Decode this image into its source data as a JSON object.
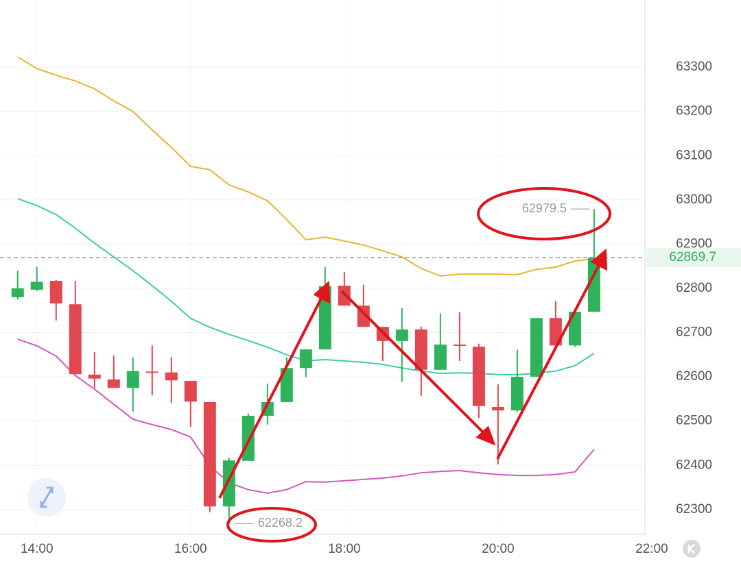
{
  "chart_data": {
    "type": "candlestick",
    "x": [
      13.75,
      14,
      14.25,
      14.5,
      14.75,
      15,
      15.25,
      15.5,
      15.75,
      16,
      16.25,
      16.5,
      16.75,
      17,
      17.25,
      17.5,
      17.75,
      18,
      18.25,
      18.5,
      18.75,
      19,
      19.25,
      19.5,
      19.75,
      20,
      20.25,
      20.5,
      20.75,
      21,
      21.25
    ],
    "open": [
      62780,
      62797,
      62817,
      62764,
      62605,
      62594,
      62575,
      62612,
      62610,
      62591,
      62543,
      62307,
      62410,
      62512,
      62543,
      62620,
      62662,
      62806,
      62761,
      62713,
      62681,
      62707,
      62616,
      62673,
      62668,
      62532,
      62524,
      62600,
      62733,
      62671,
      62747
    ],
    "high": [
      62840,
      62848,
      62819,
      62817,
      62656,
      62648,
      62644,
      62671,
      62645,
      62591,
      62543,
      62417,
      62517,
      62585,
      62644,
      62662,
      62848,
      62837,
      62808,
      62713,
      62755,
      62713,
      62743,
      62746,
      62675,
      62583,
      62661,
      62733,
      62771,
      62750,
      62979.5
    ],
    "low": [
      62775,
      62794,
      62727,
      62606,
      62575,
      62575,
      62521,
      62558,
      62541,
      62487,
      62294,
      62268.2,
      62410,
      62492,
      62543,
      62599,
      62662,
      62761,
      62713,
      62636,
      62588,
      62557,
      62616,
      62636,
      62507,
      62402,
      62520,
      62600,
      62671,
      62668,
      62747
    ],
    "close": [
      62800,
      62815,
      62766,
      62606,
      62596,
      62575,
      62613,
      62611,
      62592,
      62544,
      62307,
      62411,
      62512,
      62543,
      62620,
      62662,
      62805,
      62761,
      62713,
      62681,
      62707,
      62616,
      62673,
      62670,
      62534,
      62524,
      62600,
      62733,
      62671,
      62747,
      62869.7
    ],
    "up_color": "#2eb35c",
    "down_color": "#e0474f",
    "lines": [
      {
        "color": "#e8b42c",
        "values": [
          63323,
          63297,
          63282,
          63269,
          63251,
          63224,
          63200,
          63158,
          63119,
          63076,
          63068,
          63034,
          63018,
          62998,
          62956,
          62910,
          62916,
          62907,
          62898,
          62885,
          62871,
          62845,
          62828,
          62832,
          62832,
          62832,
          62831,
          62843,
          62848,
          62862,
          62867
        ]
      },
      {
        "color": "#3fcba9",
        "values": [
          63003,
          62987,
          62967,
          62936,
          62902,
          62871,
          62840,
          62806,
          62771,
          62732,
          62712,
          62696,
          62682,
          62667,
          62650,
          62636,
          62639,
          62636,
          62633,
          62628,
          62620,
          62613,
          62608,
          62609,
          62608,
          62605,
          62605,
          62608,
          62613,
          62625,
          62653
        ]
      },
      {
        "color": "#d458bd",
        "values": [
          62685,
          62670,
          62647,
          62603,
          62572,
          62538,
          62504,
          62492,
          62481,
          62464,
          62399,
          62360,
          62345,
          62337,
          62345,
          62363,
          62362,
          62365,
          62368,
          62371,
          62376,
          62383,
          62386,
          62388,
          62383,
          62379,
          62377,
          62377,
          62379,
          62385,
          62436
        ]
      }
    ],
    "xlim": [
      13.52,
      22.09
    ],
    "ylim": [
      62244,
      63452
    ],
    "xticks": [
      {
        "value": 14,
        "label": "14:00"
      },
      {
        "value": 16,
        "label": "16:00"
      },
      {
        "value": 18,
        "label": "18:00"
      },
      {
        "value": 20,
        "label": "20:00"
      },
      {
        "value": 22,
        "label": "22:00"
      }
    ],
    "yticks": [
      62300,
      62400,
      62500,
      62600,
      62700,
      62800,
      62900,
      63000,
      63100,
      63200,
      63300
    ],
    "grid": true
  }
}
